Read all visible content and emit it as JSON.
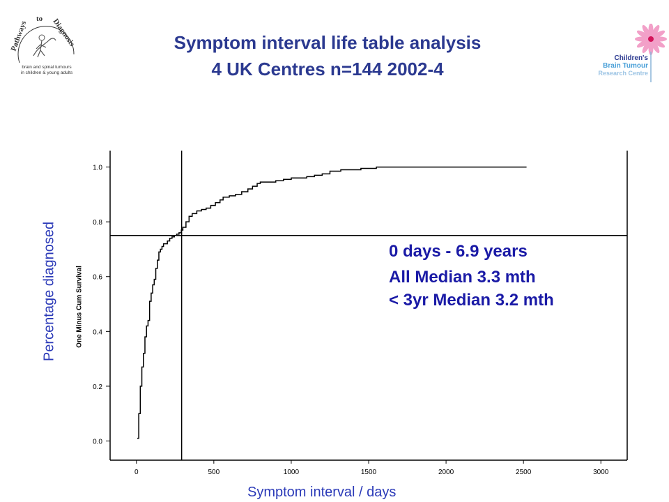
{
  "title_line1": "Symptom interval life table analysis",
  "title_line2": "4 UK Centres n=144 2002-4",
  "logo_left": {
    "name": "Pathways to Diagnosis",
    "tagline": "brain and spinal tumours in children & young adults"
  },
  "logo_right": {
    "line1": "Children's",
    "line2": "Brain Tumour",
    "line3": "Research Centre"
  },
  "outer_ylabel": "Percentage diagnosed",
  "outer_xlabel": "Symptom interval / days",
  "annotations": {
    "line1": "0 days - 6.9 years",
    "line2": "All Median 3.3 mth",
    "line3": "< 3yr Median 3.2 mth"
  },
  "colors": {
    "title": "#2b3990",
    "labels": "#2b3ab8",
    "annotation": "#1a1aa6",
    "line": "#000000"
  },
  "chart_data": {
    "type": "line",
    "step": true,
    "ylabel": "One Minus Cum Survival",
    "xlabel": "",
    "xlim": [
      -170,
      3170
    ],
    "ylim": [
      -0.07,
      1.06
    ],
    "xticks": [
      0,
      500,
      1000,
      1500,
      2000,
      2500,
      3000
    ],
    "yticks": [
      0.0,
      0.2,
      0.4,
      0.6,
      0.8,
      1.0
    ],
    "ytick_labels": [
      "0.0",
      "0.2",
      "0.4",
      "0.6",
      "0.8",
      "1.0"
    ],
    "reference_lines": {
      "vertical_x": 292,
      "horizontal_y": 0.75
    },
    "series": [
      {
        "x": [
          5,
          15,
          25,
          35,
          45,
          55,
          65,
          75,
          85,
          95,
          105,
          115,
          125,
          135,
          145,
          155,
          165,
          175,
          185,
          200,
          215,
          230,
          245,
          260,
          275,
          290,
          300,
          320,
          340,
          360,
          390,
          420,
          450,
          480,
          510,
          540,
          560,
          600,
          640,
          680,
          720,
          750,
          780,
          800,
          850,
          900,
          950,
          1000,
          1100,
          1150,
          1200,
          1250,
          1320,
          1400,
          1450,
          1500,
          1550,
          1600,
          2000,
          2400,
          2520
        ],
        "y": [
          0.01,
          0.1,
          0.2,
          0.27,
          0.32,
          0.38,
          0.42,
          0.44,
          0.51,
          0.54,
          0.57,
          0.59,
          0.63,
          0.66,
          0.69,
          0.7,
          0.71,
          0.72,
          0.72,
          0.73,
          0.74,
          0.745,
          0.75,
          0.755,
          0.76,
          0.77,
          0.78,
          0.8,
          0.82,
          0.83,
          0.84,
          0.845,
          0.85,
          0.86,
          0.87,
          0.88,
          0.89,
          0.895,
          0.9,
          0.91,
          0.92,
          0.93,
          0.94,
          0.945,
          0.945,
          0.95,
          0.955,
          0.96,
          0.965,
          0.97,
          0.975,
          0.985,
          0.99,
          0.99,
          0.995,
          0.995,
          1.0,
          1.0,
          1.0,
          1.0,
          1.0
        ]
      }
    ]
  }
}
